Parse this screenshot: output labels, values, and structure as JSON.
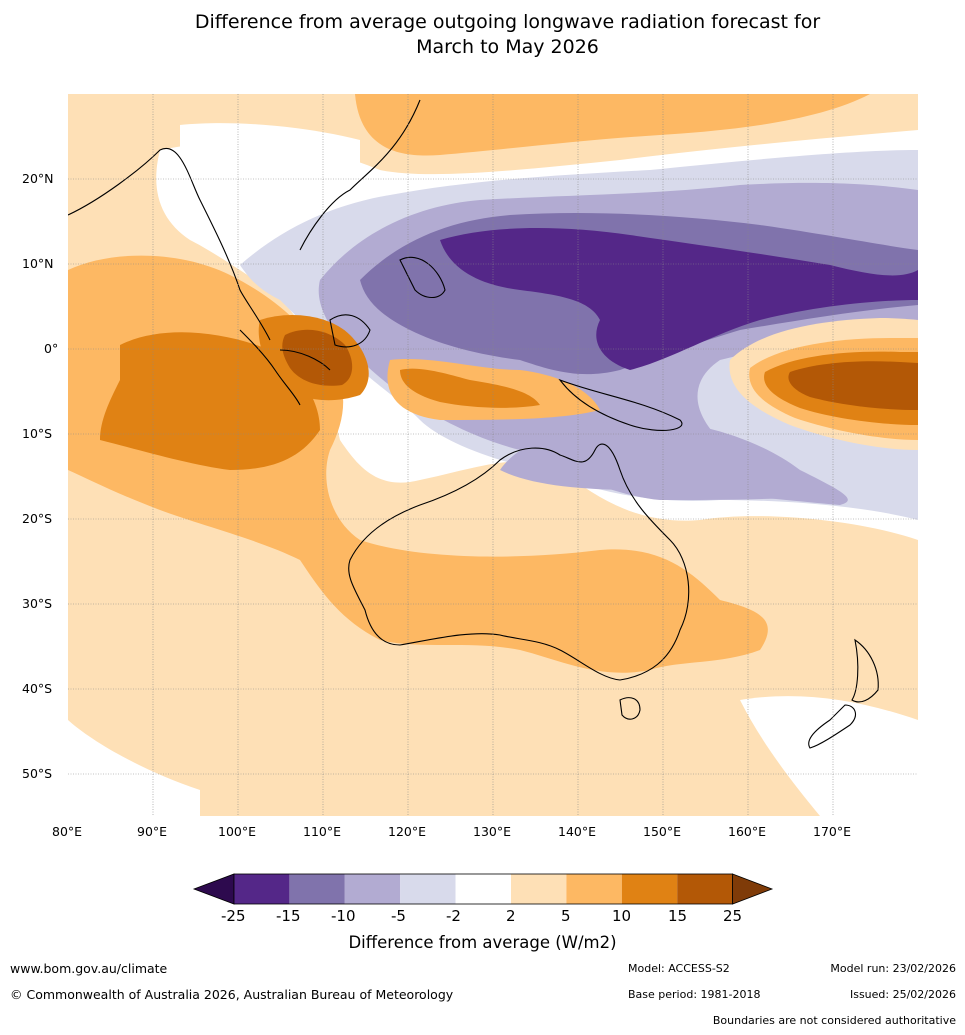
{
  "title_line1": "Difference from average outgoing longwave radiation forecast for",
  "title_line2": "March to May 2026",
  "lat_labels": [
    "20°N",
    "10°N",
    "0°",
    "10°S",
    "20°S",
    "30°S",
    "40°S",
    "50°S"
  ],
  "lon_labels": [
    "80°E",
    "90°E",
    "100°E",
    "110°E",
    "120°E",
    "130°E",
    "140°E",
    "150°E",
    "160°E",
    "170°E"
  ],
  "colorbar": {
    "ticks": [
      "-25",
      "-15",
      "-10",
      "-5",
      "-2",
      "2",
      "5",
      "10",
      "15",
      "25"
    ],
    "colors": [
      "#2d0a4e",
      "#542788",
      "#8073ac",
      "#b2abd2",
      "#d8daeb",
      "#ffffff",
      "#fee0b6",
      "#fdb863",
      "#e08214",
      "#b35806",
      "#7f3b08"
    ],
    "title": "Difference from average (W/m2)"
  },
  "footer": {
    "website": "www.bom.gov.au/climate",
    "copyright": "© Commonwealth of Australia 2026, Australian Bureau of Meteorology",
    "model": "Model: ACCESS-S2",
    "base_period": "Base period: 1981-2018",
    "model_run": "Model run: 23/02/2026",
    "issued": "Issued: 25/02/2026",
    "boundaries": "Boundaries are not considered authoritative"
  }
}
